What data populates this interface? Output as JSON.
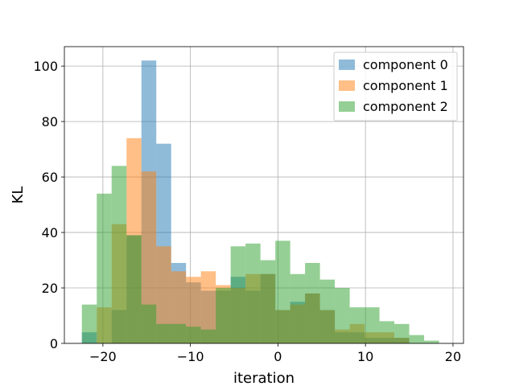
{
  "chart_data": {
    "type": "bar",
    "histogram": true,
    "xlabel": "iteration",
    "ylabel": "KL",
    "xlim": [
      -24.4,
      21.2
    ],
    "ylim": [
      0,
      107
    ],
    "xticks": [
      -20,
      -10,
      0,
      10,
      20
    ],
    "yticks": [
      0,
      20,
      40,
      60,
      80,
      100
    ],
    "grid": true,
    "legend": "top-right",
    "bin_width": 1.7,
    "series": [
      {
        "name": "component 0",
        "color": "#1f77b4",
        "alpha": 0.5,
        "bins": [
          [
            -22.4,
            4
          ],
          [
            -19.0,
            12
          ],
          [
            -17.3,
            39
          ],
          [
            -15.6,
            102
          ],
          [
            -13.9,
            72
          ],
          [
            -12.2,
            29
          ],
          [
            -10.5,
            22
          ],
          [
            -8.8,
            19
          ],
          [
            -7.1,
            19
          ],
          [
            -5.4,
            24
          ],
          [
            -3.7,
            19
          ],
          [
            -2.0,
            25
          ],
          [
            -0.3,
            12
          ],
          [
            1.4,
            15
          ],
          [
            3.1,
            18
          ],
          [
            4.8,
            12
          ],
          [
            6.5,
            4
          ],
          [
            8.2,
            4
          ],
          [
            9.9,
            2
          ],
          [
            11.6,
            2
          ],
          [
            13.3,
            2
          ]
        ]
      },
      {
        "name": "component 1",
        "color": "#ff7f0e",
        "alpha": 0.5,
        "bins": [
          [
            -20.7,
            13
          ],
          [
            -19.0,
            43
          ],
          [
            -17.3,
            74
          ],
          [
            -15.6,
            62
          ],
          [
            -13.9,
            35
          ],
          [
            -12.2,
            26
          ],
          [
            -10.5,
            24
          ],
          [
            -8.8,
            26
          ],
          [
            -7.1,
            21
          ],
          [
            -5.4,
            20
          ],
          [
            -3.7,
            25
          ],
          [
            -2.0,
            25
          ],
          [
            -0.3,
            12
          ],
          [
            1.4,
            14
          ],
          [
            3.1,
            18
          ],
          [
            4.8,
            12
          ],
          [
            6.5,
            5
          ],
          [
            8.2,
            7
          ],
          [
            9.9,
            4
          ],
          [
            11.6,
            4
          ],
          [
            13.3,
            2
          ]
        ]
      },
      {
        "name": "component 2",
        "color": "#2ca02c",
        "alpha": 0.5,
        "bins": [
          [
            -22.4,
            14
          ],
          [
            -20.7,
            54
          ],
          [
            -19.0,
            64
          ],
          [
            -17.3,
            39
          ],
          [
            -15.6,
            14
          ],
          [
            -13.9,
            7
          ],
          [
            -12.2,
            7
          ],
          [
            -10.5,
            6
          ],
          [
            -8.8,
            5
          ],
          [
            -7.1,
            20
          ],
          [
            -5.4,
            35
          ],
          [
            -3.7,
            36
          ],
          [
            -2.0,
            30
          ],
          [
            -0.3,
            37
          ],
          [
            1.4,
            25
          ],
          [
            3.1,
            29
          ],
          [
            4.8,
            23
          ],
          [
            6.5,
            20
          ],
          [
            8.2,
            13
          ],
          [
            9.9,
            13
          ],
          [
            11.6,
            8
          ],
          [
            13.3,
            7
          ],
          [
            15.0,
            3
          ],
          [
            16.7,
            1
          ]
        ]
      }
    ]
  }
}
